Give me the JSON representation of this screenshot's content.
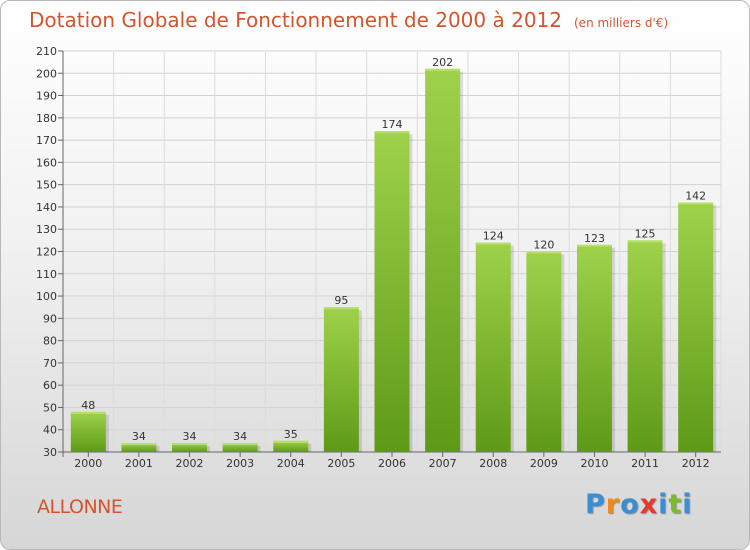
{
  "title": "Dotation Globale de Fonctionnement de 2000 à 2012",
  "subtitle": "(en milliers d'€)",
  "commune": "ALLONNE",
  "brand": {
    "text": "Proxiti",
    "letters": [
      "P",
      "r",
      "o",
      "x",
      "i",
      "t",
      "i"
    ],
    "colors": [
      "#3a8fd4",
      "#f08a1c",
      "#3a8fd4",
      "#e8372c",
      "#3a8fd4",
      "#7cbb2a",
      "#3a8fd4"
    ]
  },
  "chart_data": {
    "type": "bar",
    "categories": [
      "2000",
      "2001",
      "2002",
      "2003",
      "2004",
      "2005",
      "2006",
      "2007",
      "2008",
      "2009",
      "2010",
      "2011",
      "2012"
    ],
    "values": [
      48,
      34,
      34,
      34,
      35,
      95,
      174,
      202,
      124,
      120,
      123,
      125,
      142
    ],
    "ylim": [
      30,
      210
    ],
    "yticks": [
      30,
      40,
      50,
      60,
      70,
      80,
      90,
      100,
      110,
      120,
      130,
      140,
      150,
      160,
      170,
      180,
      190,
      200,
      210
    ],
    "grid": true,
    "bar_color": "#7cb82f"
  }
}
